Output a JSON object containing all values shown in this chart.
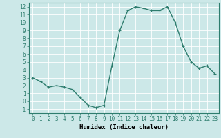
{
  "x": [
    0,
    1,
    2,
    3,
    4,
    5,
    6,
    7,
    8,
    9,
    10,
    11,
    12,
    13,
    14,
    15,
    16,
    17,
    18,
    19,
    20,
    21,
    22,
    23
  ],
  "y": [
    3.0,
    2.5,
    1.8,
    2.0,
    1.8,
    1.5,
    0.5,
    -0.5,
    -0.8,
    -0.5,
    4.5,
    9.0,
    11.5,
    12.0,
    11.8,
    11.5,
    11.5,
    12.0,
    10.0,
    7.0,
    5.0,
    4.2,
    4.5,
    3.5
  ],
  "line_color": "#2e7d6e",
  "marker": "+",
  "marker_size": 3,
  "marker_linewidth": 0.8,
  "bg_color": "#cce8e8",
  "grid_color": "#ffffff",
  "xlabel": "Humidex (Indice chaleur)",
  "xlim": [
    -0.5,
    23.5
  ],
  "ylim": [
    -1.5,
    12.5
  ],
  "yticks": [
    -1,
    0,
    1,
    2,
    3,
    4,
    5,
    6,
    7,
    8,
    9,
    10,
    11,
    12
  ],
  "xticks": [
    0,
    1,
    2,
    3,
    4,
    5,
    6,
    7,
    8,
    9,
    10,
    11,
    12,
    13,
    14,
    15,
    16,
    17,
    18,
    19,
    20,
    21,
    22,
    23
  ],
  "tick_label_fontsize": 5.5,
  "xlabel_fontsize": 6.5,
  "line_width": 1.0,
  "spine_color": "#2e7d6e"
}
